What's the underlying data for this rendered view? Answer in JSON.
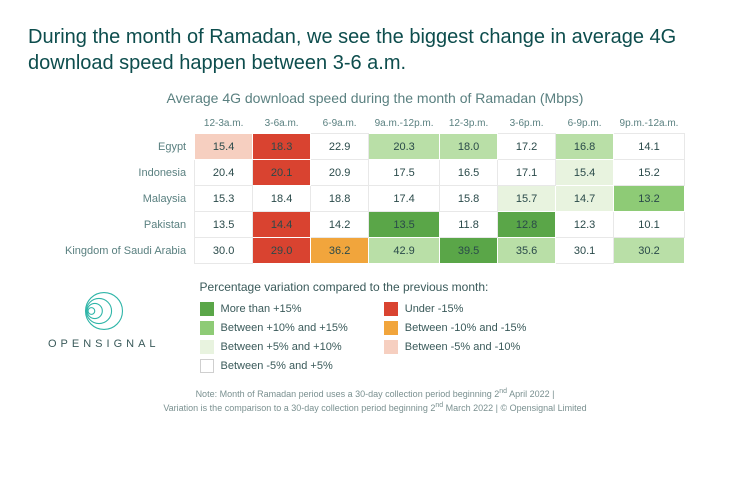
{
  "headline": "During the month of Ramadan, we see the biggest change in average 4G download speed happen between 3-6 a.m.",
  "subtitle": "Average 4G download speed during the month of Ramadan (Mbps)",
  "table": {
    "columns": [
      "12-3a.m.",
      "3-6a.m.",
      "6-9a.m.",
      "9a.m.-12p.m.",
      "12-3p.m.",
      "3-6p.m.",
      "6-9p.m.",
      "9p.m.-12a.m."
    ],
    "rows": [
      {
        "label": "Egypt",
        "cells": [
          {
            "v": "15.4",
            "c": "#f6cfc0"
          },
          {
            "v": "18.3",
            "c": "#d94330"
          },
          {
            "v": "22.9",
            "c": "#ffffff"
          },
          {
            "v": "20.3",
            "c": "#b9dfa7"
          },
          {
            "v": "18.0",
            "c": "#b9dfa7"
          },
          {
            "v": "17.2",
            "c": "#ffffff"
          },
          {
            "v": "16.8",
            "c": "#b9dfa7"
          },
          {
            "v": "14.1",
            "c": "#ffffff"
          }
        ]
      },
      {
        "label": "Indonesia",
        "cells": [
          {
            "v": "20.4",
            "c": "#ffffff"
          },
          {
            "v": "20.1",
            "c": "#d94330"
          },
          {
            "v": "20.9",
            "c": "#ffffff"
          },
          {
            "v": "17.5",
            "c": "#ffffff"
          },
          {
            "v": "16.5",
            "c": "#ffffff"
          },
          {
            "v": "17.1",
            "c": "#ffffff"
          },
          {
            "v": "15.4",
            "c": "#e8f3df"
          },
          {
            "v": "15.2",
            "c": "#ffffff"
          }
        ]
      },
      {
        "label": "Malaysia",
        "cells": [
          {
            "v": "15.3",
            "c": "#ffffff"
          },
          {
            "v": "18.4",
            "c": "#ffffff"
          },
          {
            "v": "18.8",
            "c": "#ffffff"
          },
          {
            "v": "17.4",
            "c": "#ffffff"
          },
          {
            "v": "15.8",
            "c": "#ffffff"
          },
          {
            "v": "15.7",
            "c": "#e8f3df"
          },
          {
            "v": "14.7",
            "c": "#e8f3df"
          },
          {
            "v": "13.2",
            "c": "#8ecb76"
          }
        ]
      },
      {
        "label": "Pakistan",
        "cells": [
          {
            "v": "13.5",
            "c": "#ffffff"
          },
          {
            "v": "14.4",
            "c": "#d94330"
          },
          {
            "v": "14.2",
            "c": "#ffffff"
          },
          {
            "v": "13.5",
            "c": "#5aa648"
          },
          {
            "v": "11.8",
            "c": "#ffffff"
          },
          {
            "v": "12.8",
            "c": "#5aa648"
          },
          {
            "v": "12.3",
            "c": "#ffffff"
          },
          {
            "v": "10.1",
            "c": "#ffffff"
          }
        ]
      },
      {
        "label": "Kingdom of Saudi Arabia",
        "cells": [
          {
            "v": "30.0",
            "c": "#ffffff"
          },
          {
            "v": "29.0",
            "c": "#d94330"
          },
          {
            "v": "36.2",
            "c": "#f1a53c"
          },
          {
            "v": "42.9",
            "c": "#b9dfa7"
          },
          {
            "v": "39.5",
            "c": "#5aa648"
          },
          {
            "v": "35.6",
            "c": "#b9dfa7"
          },
          {
            "v": "30.1",
            "c": "#ffffff"
          },
          {
            "v": "30.2",
            "c": "#b9dfa7"
          }
        ]
      }
    ]
  },
  "legend": {
    "title": "Percentage variation compared to the previous month:",
    "left": [
      {
        "c": "#5aa648",
        "t": "More than +15%"
      },
      {
        "c": "#8ecb76",
        "t": "Between +10% and +15%"
      },
      {
        "c": "#e8f3df",
        "t": "Between +5% and +10%"
      },
      {
        "c": "#ffffff",
        "t": "Between -5% and +5%",
        "border": true
      }
    ],
    "right": [
      {
        "c": "#d94330",
        "t": "Under -15%"
      },
      {
        "c": "#f1a53c",
        "t": "Between -10% and -15%"
      },
      {
        "c": "#f6cfc0",
        "t": "Between -5% and -10%"
      }
    ]
  },
  "logo": {
    "text": "OPENSIGNAL",
    "ring_stroke": "#2fb5a8"
  },
  "footnote_a": "Note: Month of Ramadan period uses a 30-day collection period beginning 2",
  "footnote_a2": " April 2022 |",
  "footnote_b": "Variation is the comparison to a 30-day collection period beginning 2",
  "footnote_b2": " March 2022 | © Opensignal Limited"
}
